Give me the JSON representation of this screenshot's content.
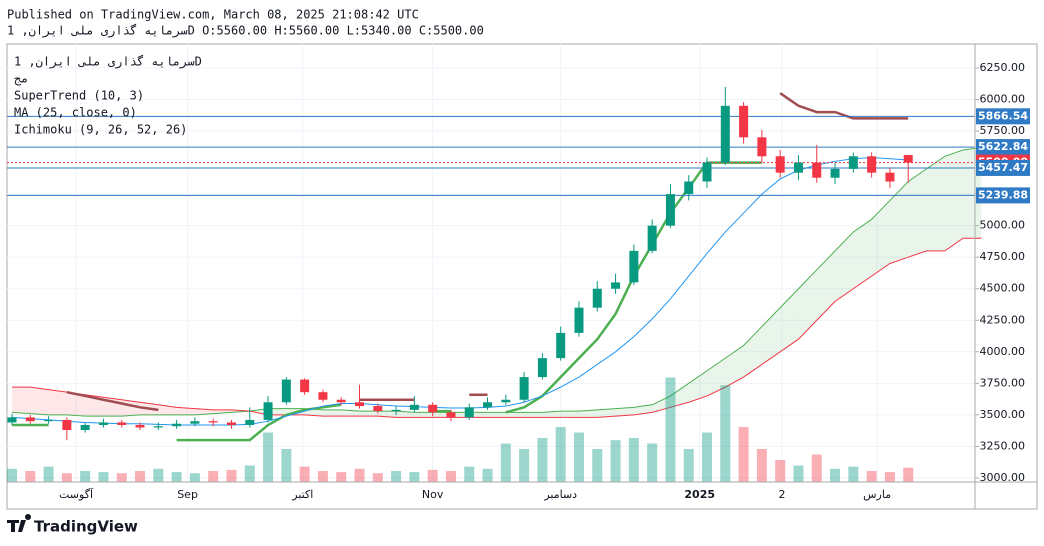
{
  "header": {
    "title": "Published on TradingView.com, March 08, 2025 21:08:42 UTC",
    "subtitle": "سرمایه گذاری ملی ایران, 1D O:5560.00 H:5560.00 L:5340.00 C:5500.00"
  },
  "legend": {
    "symbol": "سرمایه گذاری ملی ایران, 1D",
    "ticker": "مج",
    "indicators": [
      "SuperTrend (10, 3)",
      "MA (25, close, 0)",
      "Ichimoku (9, 26, 52, 26)"
    ]
  },
  "footer": {
    "logo": "TradingView"
  },
  "chart_data": {
    "type": "candlestick",
    "open": [
      3440,
      3480,
      3450,
      3460,
      3380,
      3420,
      3440,
      3420,
      3400,
      3410,
      3430,
      3450,
      3440,
      3420,
      3460,
      3600,
      3780,
      3680,
      3620,
      3600,
      3570,
      3530,
      3540,
      3580,
      3520,
      3480,
      3560,
      3600,
      3620,
      3800,
      3950,
      4150,
      4350,
      4500,
      4550,
      4800,
      5000,
      5250,
      5350,
      5500,
      5950,
      5700,
      5550,
      5420,
      5500,
      5380,
      5450,
      5550,
      5420,
      5560
    ],
    "high": [
      3510,
      3500,
      3490,
      3480,
      3440,
      3470,
      3460,
      3440,
      3440,
      3460,
      3480,
      3470,
      3460,
      3560,
      3650,
      3800,
      3790,
      3700,
      3640,
      3740,
      3590,
      3570,
      3650,
      3600,
      3540,
      3590,
      3640,
      3660,
      3840,
      3990,
      4200,
      4400,
      4560,
      4620,
      4850,
      5050,
      5330,
      5400,
      5540,
      6100,
      5980,
      5760,
      5600,
      5560,
      5640,
      5500,
      5580,
      5580,
      5460,
      5560
    ],
    "low": [
      3420,
      3430,
      3430,
      3300,
      3360,
      3400,
      3400,
      3380,
      3380,
      3390,
      3410,
      3410,
      3390,
      3400,
      3440,
      3580,
      3660,
      3600,
      3580,
      3550,
      3510,
      3500,
      3520,
      3490,
      3450,
      3460,
      3540,
      3580,
      3600,
      3780,
      3930,
      4120,
      4320,
      4460,
      4530,
      4780,
      4980,
      5200,
      5300,
      5480,
      5650,
      5500,
      5380,
      5360,
      5340,
      5330,
      5420,
      5380,
      5300,
      5340
    ],
    "close": [
      3480,
      3450,
      3460,
      3380,
      3420,
      3440,
      3420,
      3400,
      3410,
      3430,
      3450,
      3440,
      3420,
      3460,
      3600,
      3780,
      3680,
      3620,
      3600,
      3570,
      3530,
      3540,
      3580,
      3520,
      3480,
      3560,
      3600,
      3620,
      3800,
      3950,
      4150,
      4350,
      4500,
      4550,
      4800,
      5000,
      5250,
      5350,
      5500,
      5950,
      5700,
      5550,
      5420,
      5500,
      5380,
      5450,
      5550,
      5420,
      5350,
      5500
    ],
    "volume": [
      12,
      10,
      14,
      8,
      10,
      9,
      8,
      10,
      12,
      9,
      8,
      10,
      11,
      15,
      45,
      30,
      14,
      10,
      9,
      12,
      8,
      10,
      9,
      11,
      10,
      14,
      12,
      35,
      30,
      40,
      50,
      45,
      30,
      38,
      40,
      35,
      95,
      30,
      45,
      88,
      50,
      30,
      20,
      15,
      25,
      12,
      14,
      10,
      9,
      13
    ],
    "up_color": "#089981",
    "down_color": "#f23645",
    "series": [
      {
        "name": "SuperTrend (10, 3)",
        "color": "#4caf50",
        "values": [
          3420,
          3420,
          3420,
          null,
          null,
          null,
          null,
          null,
          null,
          3300,
          3300,
          3300,
          3300,
          3300,
          3420,
          3500,
          3540,
          3560,
          3580,
          null,
          null,
          null,
          null,
          3530,
          3530,
          null,
          null,
          3520,
          3560,
          3650,
          3800,
          3950,
          4100,
          4300,
          4600,
          4850,
          5100,
          5300,
          5500,
          5500,
          5500,
          5500,
          null,
          null,
          null,
          null,
          null,
          null,
          null,
          null
        ]
      },
      {
        "name": "SuperTrend (10, 3)",
        "color": "#a04c50",
        "values": [
          null,
          null,
          null,
          3680,
          3650,
          3620,
          3590,
          3560,
          3540,
          null,
          null,
          null,
          null,
          null,
          null,
          null,
          null,
          null,
          null,
          3620,
          3620,
          3620,
          3620,
          null,
          null,
          3660,
          3660,
          null,
          null,
          null,
          null,
          null,
          null,
          null,
          null,
          null,
          null,
          null,
          null,
          null,
          null,
          null,
          6050,
          5950,
          5900,
          5900,
          5850,
          5850,
          5850,
          5850
        ]
      },
      {
        "name": "MA (25, close, 0)",
        "color": "#2196f3",
        "values": [
          3480,
          3470,
          3460,
          3450,
          3440,
          3435,
          3430,
          3430,
          3425,
          3420,
          3420,
          3420,
          3420,
          3425,
          3450,
          3490,
          3530,
          3570,
          3590,
          3590,
          3580,
          3570,
          3565,
          3560,
          3555,
          3555,
          3560,
          3570,
          3600,
          3650,
          3720,
          3800,
          3900,
          4000,
          4120,
          4260,
          4420,
          4600,
          4780,
          4950,
          5100,
          5250,
          5370,
          5440,
          5480,
          5510,
          5530,
          5540,
          5530,
          5520
        ]
      }
    ],
    "cloud": {
      "span_a": [
        3520,
        3510,
        3500,
        3500,
        3490,
        3490,
        3490,
        3500,
        3500,
        3500,
        3500,
        3510,
        3520,
        3530,
        3550,
        3550,
        3550,
        3540,
        3540,
        3530,
        3530,
        3530,
        3520,
        3520,
        3520,
        3520,
        3520,
        3520,
        3520,
        3520,
        3530,
        3530,
        3540,
        3550,
        3560,
        3580,
        3650,
        3750,
        3850,
        3950,
        4050,
        4200,
        4350,
        4500,
        4650,
        4800,
        4950,
        5050,
        5200,
        5350,
        5450,
        5550,
        5600,
        5620
      ],
      "span_b": [
        3720,
        3720,
        3700,
        3680,
        3660,
        3640,
        3620,
        3600,
        3580,
        3560,
        3550,
        3540,
        3540,
        3530,
        3500,
        3500,
        3500,
        3490,
        3490,
        3490,
        3490,
        3480,
        3480,
        3480,
        3480,
        3480,
        3480,
        3480,
        3480,
        3480,
        3480,
        3480,
        3480,
        3490,
        3500,
        3520,
        3560,
        3600,
        3650,
        3720,
        3800,
        3900,
        4000,
        4100,
        4250,
        4400,
        4500,
        4600,
        4700,
        4750,
        4800,
        4800,
        4900,
        4900
      ],
      "up_color": "#4caf50",
      "down_color": "#f23645"
    },
    "price_lines": [
      {
        "value": 5866.54,
        "label": "5866.54",
        "color": "#2f7ac4"
      },
      {
        "value": 5622.84,
        "label": "5622.84",
        "color": "#2f7ac4"
      },
      {
        "value": 5500,
        "label": "5500.00",
        "color": "#f23645"
      },
      {
        "value": 5457.47,
        "label": "5457.47",
        "color": "#2f7ac4"
      },
      {
        "value": 5239.88,
        "label": "5239.88",
        "color": "#2f7ac4"
      }
    ],
    "ylim": [
      2968,
      6432
    ],
    "yticks": [
      {
        "value": 3000,
        "label": "3000.00"
      },
      {
        "value": 3250,
        "label": "3250.00"
      },
      {
        "value": 3500,
        "label": "3500.00"
      },
      {
        "value": 3750,
        "label": "3750.00"
      },
      {
        "value": 4000,
        "label": "4000.00"
      },
      {
        "value": 4250,
        "label": "4250.00"
      },
      {
        "value": 4500,
        "label": "4500.00"
      },
      {
        "value": 4750,
        "label": "4750.00"
      },
      {
        "value": 5000,
        "label": "5000.00"
      },
      {
        "value": 5250,
        "label": "5250.00"
      },
      {
        "value": 5500,
        "label": "5500.00"
      },
      {
        "value": 5750,
        "label": "5750.00"
      },
      {
        "value": 6000,
        "label": "6000.00"
      },
      {
        "value": 6250,
        "label": "6250.00"
      }
    ],
    "xticks": [
      {
        "value": 3.5,
        "label": "آگوست"
      },
      {
        "value": 9.6,
        "label": "Sep"
      },
      {
        "value": 15.9,
        "label": "اکتبر"
      },
      {
        "value": 23,
        "label": "Nov"
      },
      {
        "value": 30,
        "label": "دسامبر"
      },
      {
        "value": 37.6,
        "label": "2025"
      },
      {
        "value": 42.1,
        "label": "2"
      },
      {
        "value": 47.3,
        "label": "مارس"
      }
    ],
    "grid": true
  }
}
